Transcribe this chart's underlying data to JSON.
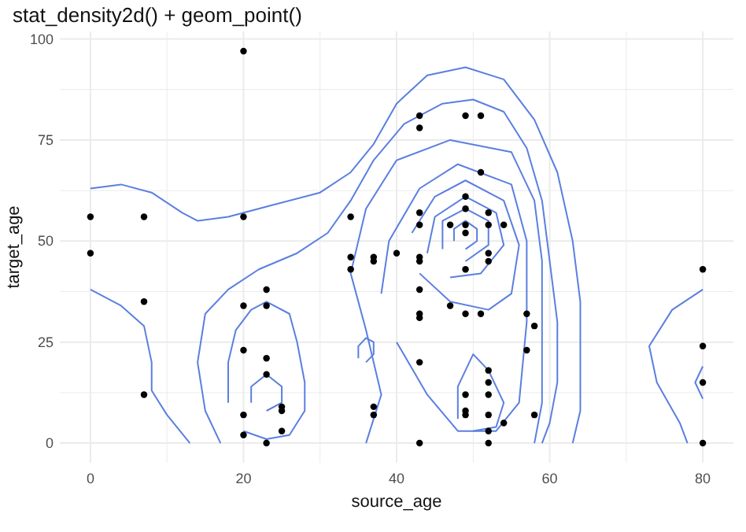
{
  "chart_data": {
    "type": "scatter",
    "title": "stat_density2d() + geom_point()",
    "xlabel": "source_age",
    "ylabel": "target_age",
    "xlim": [
      -4,
      84
    ],
    "ylim": [
      -4.85,
      101.85
    ],
    "xticks": [
      0,
      {
        "value": 10,
        "label": null
      },
      20,
      {
        "value": 30,
        "label": null
      },
      40,
      {
        "value": 50,
        "label": null
      },
      60,
      {
        "value": 70,
        "label": null
      },
      80
    ],
    "yticks": [
      0,
      {
        "value": 12.5,
        "label": null
      },
      25,
      {
        "value": 37.5,
        "label": null
      },
      50,
      {
        "value": 62.5,
        "label": null
      },
      75,
      {
        "value": 87.5,
        "label": null
      },
      100
    ],
    "grid": true,
    "series": [
      {
        "type": "line",
        "color": "#5b7fe0",
        "x": [
          0,
          4,
          8,
          12,
          14,
          18,
          24,
          30,
          34,
          37,
          40,
          44,
          49,
          54,
          58,
          61,
          63,
          64,
          64,
          64,
          63
        ],
        "values": [
          63,
          64,
          62,
          57,
          55,
          56,
          59,
          62,
          67,
          74,
          84,
          91,
          93,
          90,
          80,
          67,
          50,
          35,
          20,
          8,
          0
        ]
      },
      {
        "type": "line",
        "color": "#5b7fe0",
        "x": [
          0,
          4,
          7,
          8,
          8,
          10,
          13
        ],
        "values": [
          38,
          34,
          29,
          20,
          13,
          7,
          0
        ]
      },
      {
        "type": "line",
        "color": "#5b7fe0",
        "x": [
          17,
          15,
          14,
          15,
          18,
          22,
          27,
          31,
          34,
          37,
          41,
          46,
          50,
          54,
          57,
          59,
          60,
          61,
          61,
          60,
          59
        ],
        "values": [
          0,
          8,
          20,
          32,
          38,
          43,
          47,
          52,
          60,
          70,
          79,
          84,
          85,
          82,
          73,
          60,
          45,
          30,
          15,
          5,
          0
        ]
      },
      {
        "type": "line",
        "color": "#5b7fe0",
        "x": [
          36,
          38,
          36,
          34,
          36,
          40,
          47,
          55,
          58,
          59,
          59,
          59,
          58
        ],
        "values": [
          0,
          12,
          28,
          42,
          58,
          70,
          75,
          72,
          60,
          45,
          25,
          10,
          0
        ]
      },
      {
        "type": "line",
        "color": "#5b7fe0",
        "x": [
          38,
          39,
          43,
          48,
          55,
          57,
          57,
          56,
          53,
          48,
          44,
          40
        ],
        "values": [
          37,
          50,
          63,
          69,
          64,
          50,
          30,
          10,
          3,
          3,
          12,
          25
        ]
      },
      {
        "type": "line",
        "color": "#5b7fe0",
        "x": [
          42,
          45,
          49,
          54,
          56,
          55,
          52,
          47,
          43
        ],
        "values": [
          52,
          61,
          65,
          60,
          49,
          37,
          33,
          35,
          42
        ]
      },
      {
        "type": "line",
        "color": "#5b7fe0",
        "x": [
          44,
          45,
          49,
          53,
          54,
          51,
          47
        ],
        "values": [
          47,
          56,
          61,
          57,
          49,
          42,
          41
        ]
      },
      {
        "type": "line",
        "color": "#5b7fe0",
        "x": [
          46,
          46,
          49,
          52,
          52,
          49
        ],
        "values": [
          48,
          55,
          58,
          55,
          49,
          45
        ]
      },
      {
        "type": "line",
        "color": "#5b7fe0",
        "x": [
          47.5,
          47.5,
          49,
          50.5,
          50.5,
          49
        ],
        "values": [
          50,
          53,
          55,
          53,
          50,
          48
        ]
      },
      {
        "type": "line",
        "color": "#5b7fe0",
        "x": [
          48,
          48,
          50,
          52,
          54,
          53,
          50
        ],
        "values": [
          6,
          14,
          22,
          18,
          10,
          4,
          3
        ]
      },
      {
        "type": "line",
        "color": "#5b7fe0",
        "x": [
          18,
          18,
          19,
          21,
          23,
          26,
          27,
          28,
          28,
          26,
          23,
          20
        ],
        "values": [
          10,
          20,
          28,
          33,
          35,
          32,
          25,
          15,
          8,
          2,
          1,
          3
        ]
      },
      {
        "type": "line",
        "color": "#5b7fe0",
        "x": [
          21,
          21,
          23,
          25,
          25,
          23
        ],
        "values": [
          10,
          14,
          17,
          14,
          10,
          8
        ]
      },
      {
        "type": "line",
        "color": "#5b7fe0",
        "x": [
          35,
          35,
          36,
          37,
          37,
          36
        ],
        "values": [
          21,
          24,
          26,
          25,
          22,
          20
        ]
      },
      {
        "type": "line",
        "color": "#5b7fe0",
        "x": [
          80,
          76,
          73,
          74,
          77,
          78
        ],
        "values": [
          38,
          33,
          24,
          15,
          5,
          0
        ]
      },
      {
        "type": "line",
        "color": "#5b7fe0",
        "x": [
          80,
          79,
          80
        ],
        "values": [
          19,
          15,
          11
        ]
      },
      {
        "type": "scatter",
        "color": "#000000",
        "marker": "circle",
        "x": [
          0,
          0,
          7,
          7,
          7,
          20,
          20,
          20,
          20,
          20,
          20,
          23,
          23,
          23,
          23,
          23,
          25,
          25,
          25,
          34,
          34,
          34,
          37,
          37,
          37,
          37,
          40,
          43,
          43,
          43,
          43,
          43,
          43,
          43,
          43,
          43,
          43,
          43,
          47,
          47,
          49,
          49,
          49,
          49,
          49,
          49,
          49,
          49,
          49,
          49,
          51,
          51,
          51,
          52,
          52,
          52,
          52,
          52,
          52,
          52,
          52,
          52,
          52,
          54,
          54,
          57,
          57,
          58,
          58,
          80,
          80,
          80,
          80
        ],
        "values": [
          56,
          47,
          56,
          35,
          12,
          97,
          56,
          34,
          23,
          7,
          2,
          38,
          34,
          21,
          17,
          0,
          9,
          8,
          3,
          56,
          46,
          43,
          46,
          45,
          9,
          7,
          47,
          81,
          78,
          57,
          54,
          46,
          45,
          38,
          32,
          31,
          20,
          0,
          54,
          34,
          81,
          61,
          58,
          54,
          52,
          43,
          32,
          12,
          8,
          7,
          81,
          67,
          32,
          57,
          54,
          47,
          45,
          18,
          15,
          12,
          7,
          3,
          0,
          54,
          5,
          32,
          23,
          29,
          7,
          43,
          24,
          15,
          0
        ]
      }
    ]
  }
}
